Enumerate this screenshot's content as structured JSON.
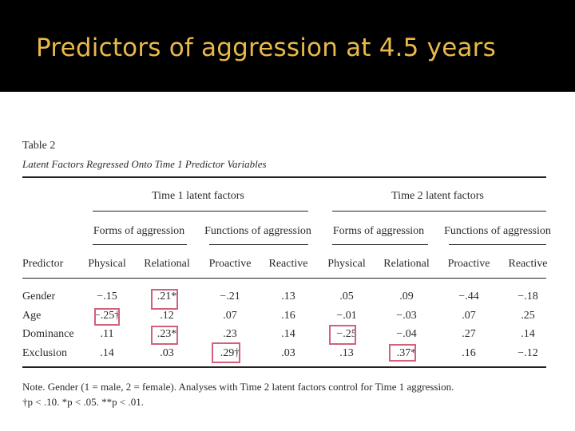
{
  "slide": {
    "title": "Predictors of aggression at 4.5 years"
  },
  "table": {
    "label": "Table 2",
    "caption": "Latent Factors Regressed Onto Time 1 Predictor Variables",
    "group_headers": [
      "Time 1 latent factors",
      "Time 2 latent factors"
    ],
    "subgroup_headers": [
      "Forms of aggression",
      "Functions of aggression",
      "Forms of aggression",
      "Functions of aggression"
    ],
    "predictor_header": "Predictor",
    "columns": [
      "Physical",
      "Relational",
      "Proactive",
      "Reactive",
      "Physical",
      "Relational",
      "Proactive",
      "Reactive"
    ],
    "rows": [
      {
        "label": "Gender",
        "values": [
          "−.15",
          ".21*",
          "−.21",
          ".13",
          ".05",
          ".09",
          "−.44",
          "−.18"
        ]
      },
      {
        "label": "Age",
        "values": [
          "−.25†",
          ".12",
          ".07",
          ".16",
          "−.01",
          "−.03",
          ".07",
          ".25"
        ]
      },
      {
        "label": "Dominance",
        "values": [
          ".11",
          ".23*",
          ".23",
          ".14",
          "−.25",
          "−.04",
          ".27",
          ".14"
        ]
      },
      {
        "label": "Exclusion",
        "values": [
          ".14",
          ".03",
          ".29†",
          ".03",
          ".13",
          ".37*",
          ".16",
          "−.12"
        ]
      }
    ],
    "note": "Note. Gender (1 = male, 2 = female). Analyses with Time 2 latent factors control for Time 1 aggression.",
    "significance": "†p < .10. *p < .05. **p < .01.",
    "highlight_color": "#d4607a"
  }
}
